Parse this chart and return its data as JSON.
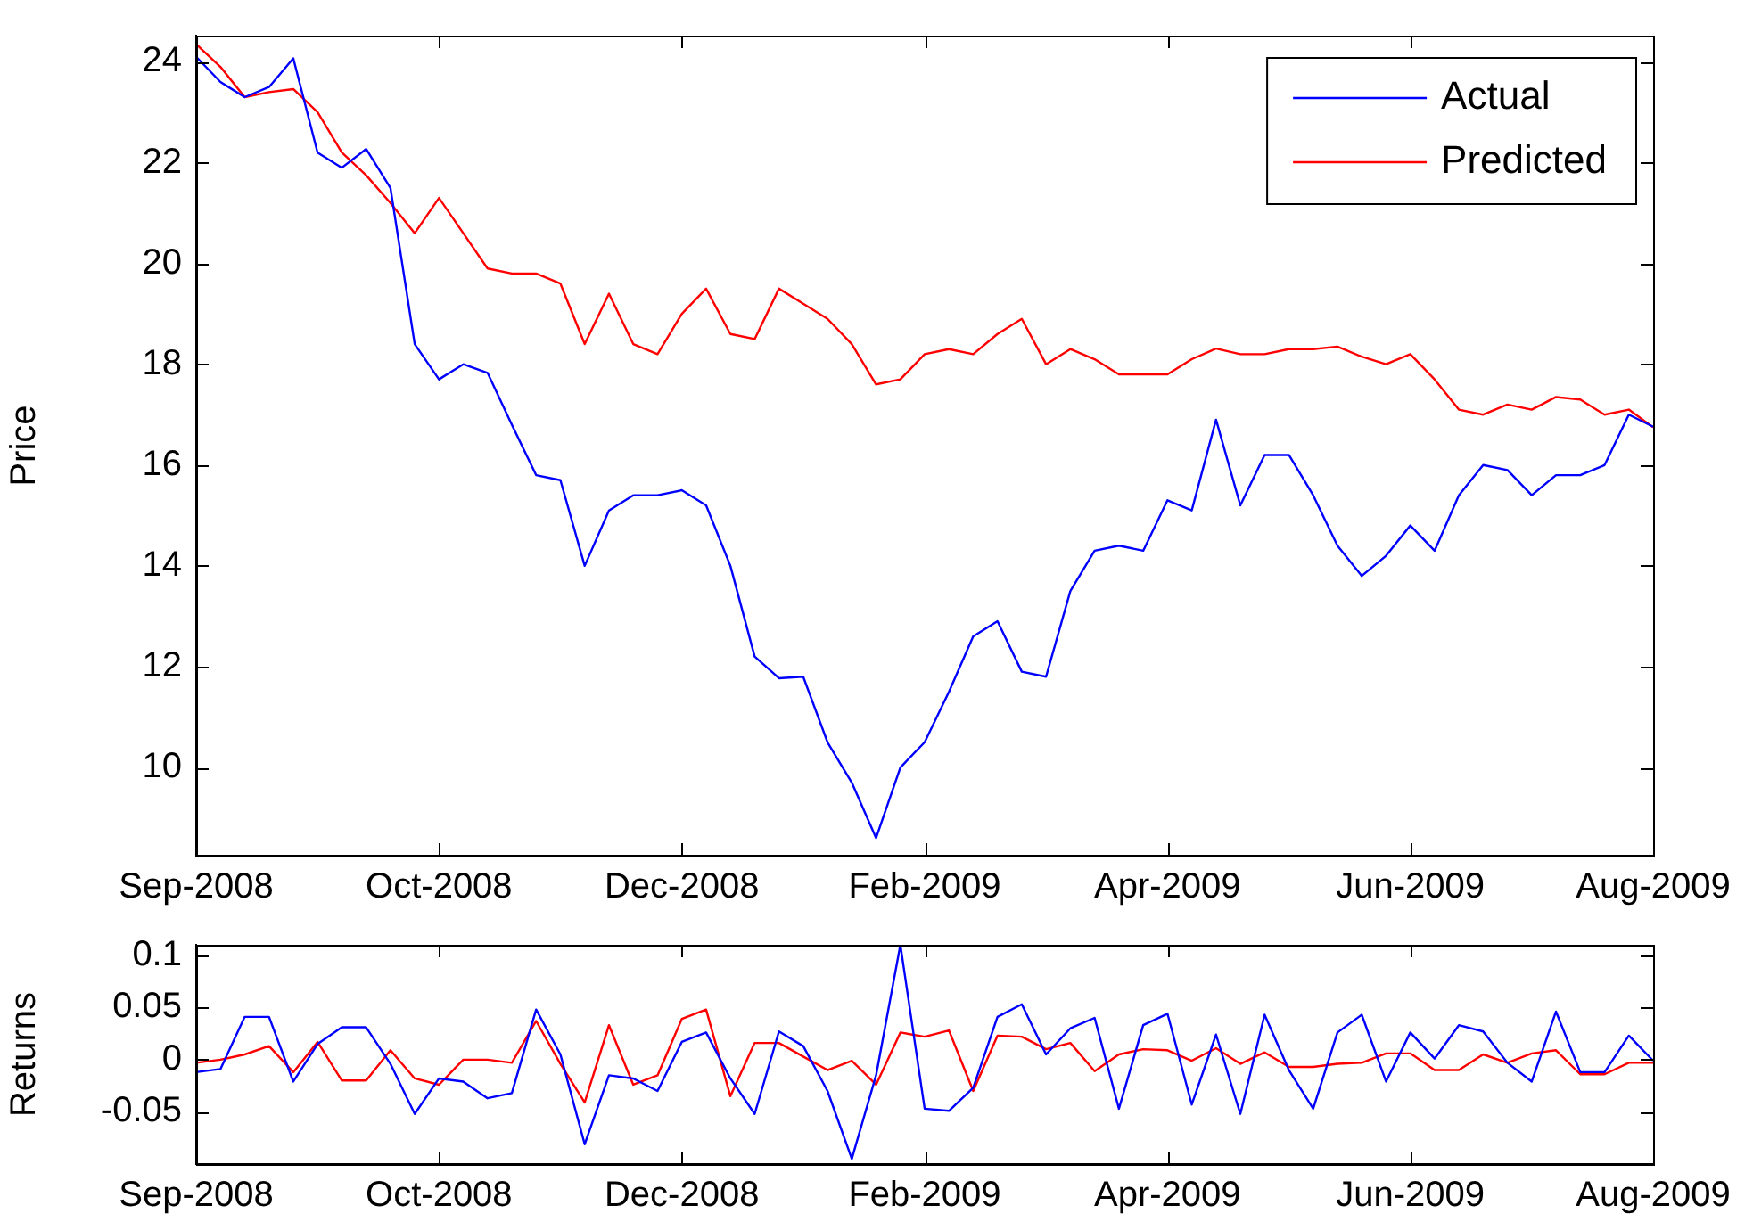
{
  "chart_data": [
    {
      "type": "line",
      "ylabel": "Price",
      "categories": [
        "Sep-2008",
        null,
        null,
        null,
        null,
        null,
        null,
        null,
        null,
        null,
        "Oct-2008",
        null,
        null,
        null,
        null,
        null,
        null,
        null,
        null,
        null,
        "Dec-2008",
        null,
        null,
        null,
        null,
        null,
        null,
        null,
        null,
        null,
        "Feb-2009",
        null,
        null,
        null,
        null,
        null,
        null,
        null,
        null,
        null,
        "Apr-2009",
        null,
        null,
        null,
        null,
        null,
        null,
        null,
        null,
        null,
        "Jun-2009",
        null,
        null,
        null,
        null,
        null,
        null,
        null,
        null,
        null,
        "Aug-2009"
      ],
      "ylim": [
        8.25,
        24.52
      ],
      "yticks": [
        10,
        12,
        14,
        16,
        18,
        20,
        22,
        24
      ],
      "grid": false,
      "legend": "top right",
      "series": [
        {
          "name": "Actual",
          "color": "#0000ff",
          "values": [
            24.1,
            23.6,
            23.3,
            23.5,
            24.07,
            22.2,
            21.9,
            22.27,
            21.5,
            18.4,
            17.7,
            18.0,
            17.83,
            16.8,
            15.8,
            15.7,
            14.0,
            15.1,
            15.4,
            15.4,
            15.5,
            15.2,
            14.0,
            12.2,
            11.77,
            11.8,
            10.5,
            9.7,
            8.6,
            10.0,
            10.5,
            11.5,
            12.6,
            12.9,
            11.9,
            11.8,
            13.5,
            14.3,
            14.4,
            14.3,
            15.3,
            15.1,
            16.9,
            15.2,
            16.2,
            16.2,
            15.4,
            14.4,
            13.8,
            14.2,
            14.8,
            14.3,
            15.4,
            16.0,
            15.9,
            15.4,
            15.8,
            15.8,
            16.0,
            17.0,
            16.76
          ]
        },
        {
          "name": "Predicted",
          "color": "#ff0000",
          "values": [
            24.35,
            23.9,
            23.3,
            23.4,
            23.46,
            23.0,
            22.2,
            21.75,
            21.2,
            20.6,
            21.3,
            20.6,
            19.9,
            19.8,
            19.8,
            19.6,
            18.4,
            19.4,
            18.4,
            18.2,
            19.0,
            19.5,
            18.6,
            18.5,
            19.5,
            19.2,
            18.9,
            18.4,
            17.6,
            17.7,
            18.2,
            18.3,
            18.2,
            18.6,
            18.9,
            18.0,
            18.3,
            18.1,
            17.8,
            17.8,
            17.8,
            18.1,
            18.31,
            18.2,
            18.2,
            18.3,
            18.3,
            18.35,
            18.15,
            18.0,
            18.2,
            17.7,
            17.1,
            17.0,
            17.2,
            17.1,
            17.35,
            17.3,
            17.0,
            17.1,
            16.75
          ]
        }
      ]
    },
    {
      "type": "line",
      "ylabel": "Returns",
      "categories": [
        "Sep-2008",
        null,
        null,
        null,
        null,
        null,
        null,
        null,
        null,
        null,
        "Oct-2008",
        null,
        null,
        null,
        null,
        null,
        null,
        null,
        null,
        null,
        "Dec-2008",
        null,
        null,
        null,
        null,
        null,
        null,
        null,
        null,
        null,
        "Feb-2009",
        null,
        null,
        null,
        null,
        null,
        null,
        null,
        null,
        null,
        "Apr-2009",
        null,
        null,
        null,
        null,
        null,
        null,
        null,
        null,
        null,
        "Jun-2009",
        null,
        null,
        null,
        null,
        null,
        null,
        null,
        null,
        null,
        "Aug-2009"
      ],
      "ylim": [
        -0.1,
        0.11
      ],
      "yticks": [
        -0.05,
        0,
        0.05,
        0.1
      ],
      "grid": false,
      "series": [
        {
          "color": "#0000ff",
          "values": [
            -0.012,
            -0.009,
            0.041,
            0.041,
            -0.021,
            0.015,
            0.031,
            0.031,
            -0.004,
            -0.052,
            -0.018,
            -0.021,
            -0.037,
            -0.032,
            0.048,
            0.005,
            -0.081,
            -0.015,
            -0.018,
            -0.03,
            0.017,
            0.026,
            -0.018,
            -0.052,
            0.027,
            0.013,
            -0.03,
            -0.095,
            -0.015,
            0.11,
            -0.047,
            -0.049,
            -0.027,
            0.041,
            0.053,
            0.005,
            0.03,
            0.04,
            -0.047,
            0.033,
            0.044,
            -0.043,
            0.024,
            -0.052,
            0.043,
            -0.01,
            -0.047,
            0.026,
            0.043,
            -0.021,
            0.026,
            0.001,
            0.033,
            0.027,
            -0.003,
            -0.021,
            0.046,
            -0.012,
            -0.012,
            0.023,
            -0.001
          ]
        },
        {
          "color": "#ff0000",
          "values": [
            -0.003,
            0,
            0.005,
            0.013,
            -0.012,
            0.017,
            -0.02,
            -0.02,
            0.009,
            -0.018,
            -0.024,
            0,
            0,
            -0.003,
            0.037,
            -0.004,
            -0.041,
            0.033,
            -0.024,
            -0.015,
            0.039,
            0.048,
            -0.035,
            0.016,
            0.016,
            0.003,
            -0.01,
            -0.001,
            -0.024,
            0.026,
            0.022,
            0.028,
            -0.03,
            0.023,
            0.022,
            0.01,
            0.016,
            -0.011,
            0.005,
            0.01,
            0.009,
            -0.001,
            0.011,
            -0.004,
            0.007,
            -0.007,
            -0.007,
            -0.004,
            -0.003,
            0.006,
            0.006,
            -0.01,
            -0.01,
            0.005,
            -0.003,
            0.006,
            0.009,
            -0.014,
            -0.014,
            -0.003,
            -0.003
          ]
        }
      ]
    }
  ]
}
